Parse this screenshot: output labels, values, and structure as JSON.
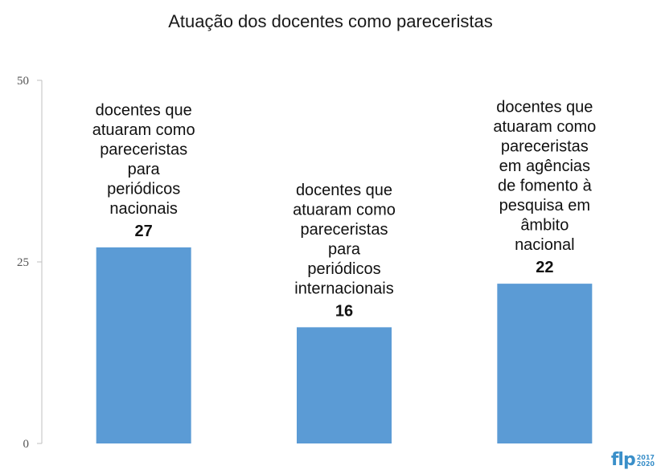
{
  "chart_data": {
    "type": "bar",
    "title": "Atuação dos docentes como pareceristas",
    "categories": [
      [
        "docentes que",
        "atuaram como",
        "pareceristas",
        "para",
        "periódicos",
        "nacionais"
      ],
      [
        "docentes que",
        "atuaram como",
        "pareceristas",
        "para",
        "periódicos",
        "internacionais"
      ],
      [
        "docentes que",
        "atuaram como",
        "pareceristas",
        "em agências",
        "de fomento à",
        "pesquisa em",
        "âmbito",
        "nacional"
      ]
    ],
    "values": [
      27,
      16,
      22
    ],
    "ylim": [
      0,
      50
    ],
    "yticks": [
      "0",
      "25",
      "50"
    ],
    "bar_color": "#5b9bd5",
    "axis_color": "#bfbfbf",
    "grid": false,
    "legend": "none"
  },
  "logo": {
    "text": "flp",
    "years_top": "2017",
    "years_bottom": "2020",
    "color": "#3a8fc9"
  }
}
